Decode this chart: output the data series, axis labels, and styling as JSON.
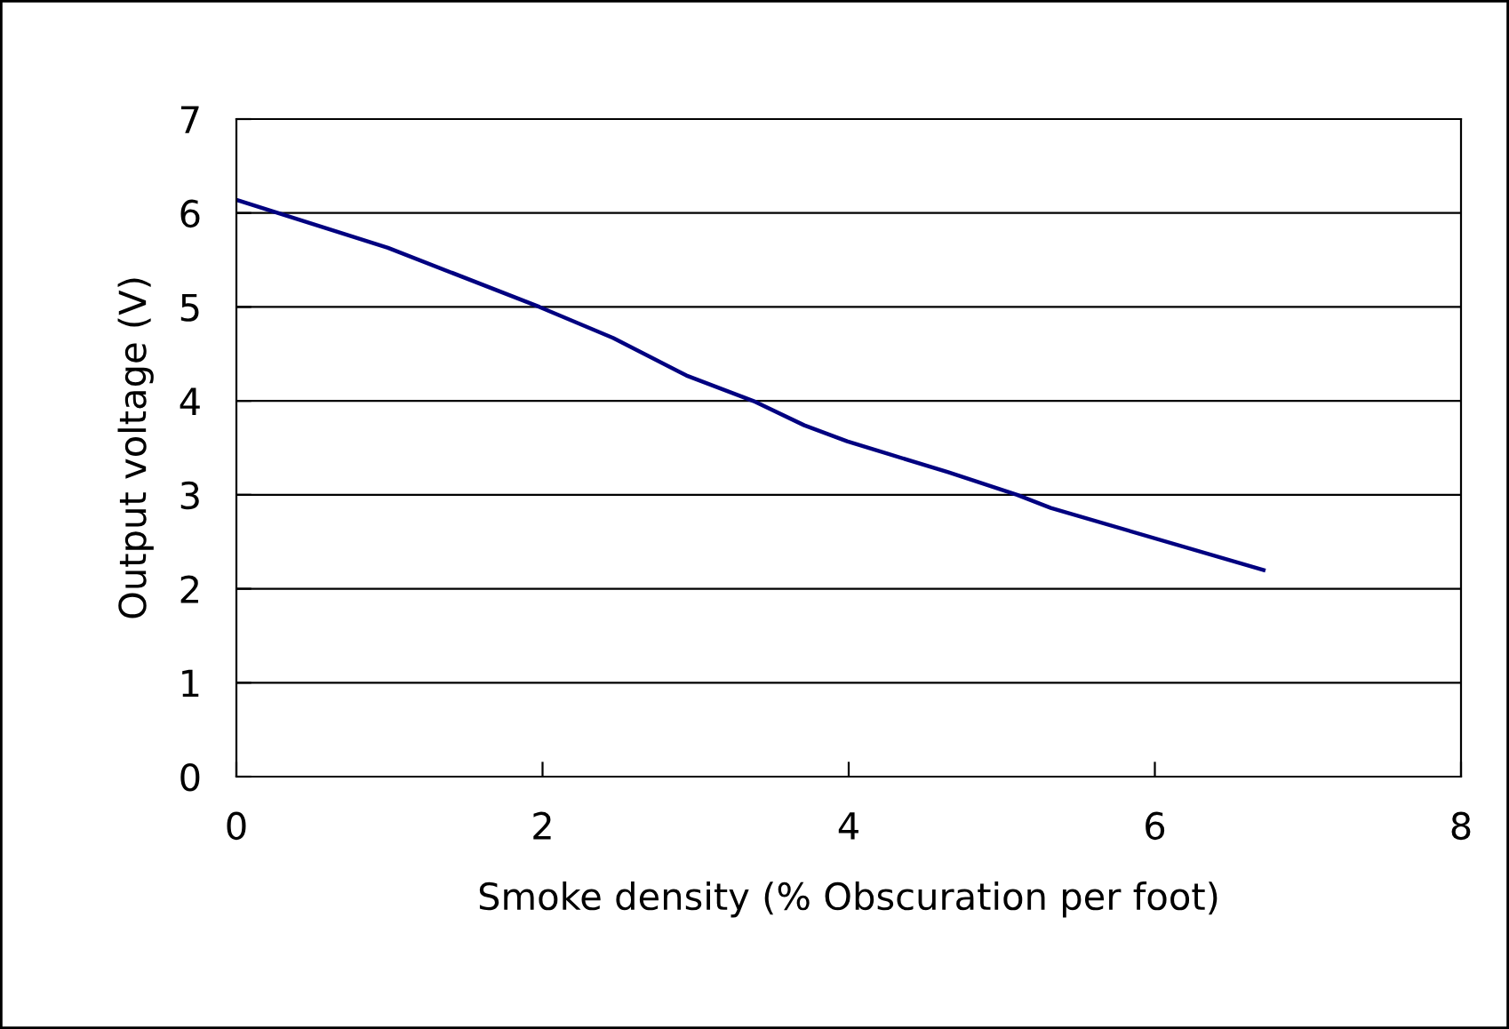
{
  "chart_data": {
    "type": "line",
    "xlabel": "Smoke density (% Obscuration per foot)",
    "ylabel": "Output voltage (V)",
    "x": [
      0,
      0.99,
      1.98,
      2.46,
      2.94,
      3.39,
      3.71,
      3.99,
      4.65,
      5.1,
      5.32,
      6.71
    ],
    "series": [
      {
        "color": "#000080",
        "values": [
          6.14,
          5.63,
          5.0,
          4.67,
          4.27,
          3.99,
          3.74,
          3.57,
          3.24,
          3.0,
          2.86,
          2.2
        ]
      }
    ],
    "xlim": [
      0,
      8
    ],
    "xticks": [
      0,
      2,
      4,
      6,
      8
    ],
    "ylim": [
      0,
      7
    ],
    "yticks": [
      0,
      1,
      2,
      3,
      4,
      5,
      6,
      7
    ],
    "grid": "y",
    "marker": "none",
    "line_style": "solid"
  }
}
